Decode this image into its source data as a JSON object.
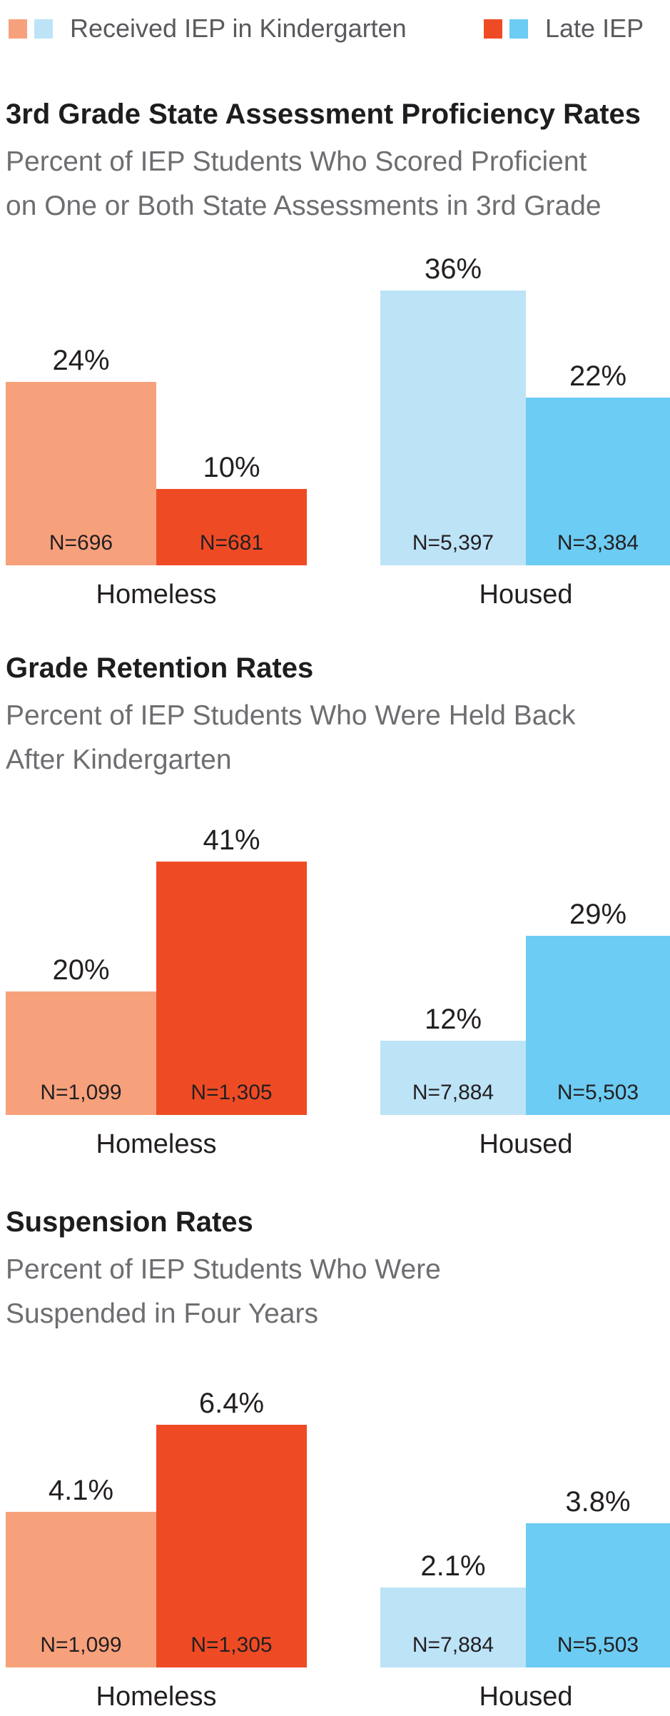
{
  "colors": {
    "light_orange": "#F7A17C",
    "dark_orange": "#EE4B25",
    "light_blue": "#BDE3F7",
    "medium_blue": "#6CCCF3",
    "title_text": "#1D1D1F",
    "subtitle_text": "#6D6E71",
    "legend_text": "#595A5D",
    "label_text": "#231F20"
  },
  "legend": {
    "items": [
      {
        "label": "Received IEP in Kindergarten",
        "swatches": [
          "light_orange",
          "light_blue"
        ]
      },
      {
        "label": "Late IEP",
        "swatches": [
          "dark_orange",
          "medium_blue"
        ]
      }
    ]
  },
  "chart_data": [
    {
      "type": "bar",
      "title": "3rd Grade State Assessment Proficiency Rates",
      "subtitle": "Percent of IEP Students Who Scored Proficient on One or Both State Assessments in 3rd Grade",
      "subtitle_lines": [
        "Percent of IEP Students Who Scored Proficient",
        "on One or Both State Assessments in 3rd Grade"
      ],
      "categories": [
        "Homeless",
        "Housed"
      ],
      "unit": "%",
      "series": [
        {
          "name": "Received IEP in Kindergarten",
          "values": [
            24,
            36
          ],
          "n_labels": [
            "N=696",
            "N=5,397"
          ]
        },
        {
          "name": "Late IEP",
          "values": [
            10,
            22
          ],
          "n_labels": [
            "N=681",
            "N=3,384"
          ]
        }
      ],
      "ylim": [
        0,
        42
      ],
      "grid": false,
      "legend_position": "top"
    },
    {
      "type": "bar",
      "title": "Grade Retention Rates",
      "subtitle": "Percent of IEP Students Who Were Held Back After Kindergarten",
      "subtitle_lines": [
        "Percent of IEP Students Who Were Held Back",
        "After Kindergarten"
      ],
      "categories": [
        "Homeless",
        "Housed"
      ],
      "unit": "%",
      "series": [
        {
          "name": "Received IEP in Kindergarten",
          "values": [
            20,
            12
          ],
          "n_labels": [
            "N=1,099",
            "N=7,884"
          ]
        },
        {
          "name": "Late IEP",
          "values": [
            41,
            29
          ],
          "n_labels": [
            "N=1,305",
            "N=5,503"
          ]
        }
      ],
      "ylim": [
        0,
        50
      ],
      "grid": false,
      "legend_position": "top"
    },
    {
      "type": "bar",
      "title": "Suspension Rates",
      "subtitle": "Percent of IEP Students Who Were Suspended in Four Years",
      "subtitle_lines": [
        "Percent of IEP Students Who Were",
        "Suspended in Four Years"
      ],
      "categories": [
        "Homeless",
        "Housed"
      ],
      "unit": "%",
      "series": [
        {
          "name": "Received IEP in Kindergarten",
          "values": [
            4.1,
            2.1
          ],
          "n_labels": [
            "N=1,099",
            "N=7,884"
          ]
        },
        {
          "name": "Late IEP",
          "values": [
            6.4,
            3.8
          ],
          "n_labels": [
            "N=1,305",
            "N=5,503"
          ]
        }
      ],
      "ylim": [
        0,
        7.5
      ],
      "grid": false,
      "legend_position": "top"
    }
  ]
}
